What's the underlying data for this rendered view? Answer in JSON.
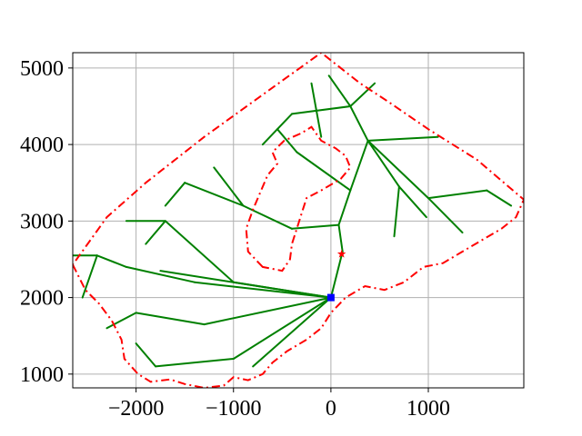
{
  "chart_data": {
    "type": "scatter",
    "title": "",
    "xlabel": "",
    "ylabel": "",
    "xlim": [
      -2650,
      1980
    ],
    "ylim": [
      820,
      5200
    ],
    "grid": true,
    "xticks": [
      -2000,
      -1000,
      0,
      1000
    ],
    "yticks": [
      1000,
      2000,
      3000,
      4000,
      5000
    ],
    "xtick_labels": [
      "−2000",
      "−1000",
      "0",
      "1000"
    ],
    "ytick_labels": [
      "1000",
      "2000",
      "3000",
      "4000",
      "5000"
    ],
    "colors": {
      "branches": "#008000",
      "outer_boundary": "#ff0000",
      "inner_boundary": "#ff0000",
      "origin_marker": "#0000ff",
      "target_marker": "#ff0000"
    },
    "outer_boundary": [
      [
        -2650,
        2430
      ],
      [
        -2520,
        2100
      ],
      [
        -2380,
        1920
      ],
      [
        -2250,
        1700
      ],
      [
        -2150,
        1450
      ],
      [
        -2120,
        1200
      ],
      [
        -1980,
        1000
      ],
      [
        -1850,
        900
      ],
      [
        -1650,
        930
      ],
      [
        -1500,
        870
      ],
      [
        -1300,
        820
      ],
      [
        -1100,
        850
      ],
      [
        -1000,
        960
      ],
      [
        -850,
        920
      ],
      [
        -700,
        1000
      ],
      [
        -600,
        1150
      ],
      [
        -450,
        1300
      ],
      [
        -250,
        1450
      ],
      [
        -100,
        1600
      ],
      [
        0,
        1800
      ],
      [
        150,
        2000
      ],
      [
        350,
        2150
      ],
      [
        550,
        2100
      ],
      [
        750,
        2200
      ],
      [
        950,
        2400
      ],
      [
        1150,
        2450
      ],
      [
        1350,
        2600
      ],
      [
        1550,
        2750
      ],
      [
        1750,
        2900
      ],
      [
        1900,
        3050
      ],
      [
        1980,
        3280
      ],
      [
        1500,
        3800
      ],
      [
        1000,
        4200
      ],
      [
        600,
        4550
      ],
      [
        300,
        4800
      ],
      [
        -100,
        5200
      ],
      [
        -700,
        4650
      ],
      [
        -1300,
        4100
      ],
      [
        -1900,
        3500
      ],
      [
        -2300,
        3050
      ],
      [
        -2650,
        2430
      ]
    ],
    "inner_boundary": [
      [
        -700,
        2400
      ],
      [
        -850,
        2600
      ],
      [
        -870,
        2900
      ],
      [
        -800,
        3150
      ],
      [
        -650,
        3600
      ],
      [
        -550,
        3750
      ],
      [
        -600,
        3900
      ],
      [
        -480,
        4050
      ],
      [
        -300,
        4150
      ],
      [
        -200,
        4230
      ],
      [
        -100,
        4050
      ],
      [
        50,
        3950
      ],
      [
        150,
        3850
      ],
      [
        200,
        3700
      ],
      [
        100,
        3550
      ],
      [
        -100,
        3400
      ],
      [
        -250,
        3300
      ],
      [
        -300,
        3100
      ],
      [
        -350,
        2900
      ],
      [
        -400,
        2700
      ],
      [
        -420,
        2500
      ],
      [
        -500,
        2350
      ],
      [
        -700,
        2400
      ]
    ],
    "origin_marker": {
      "label": "",
      "x": 0,
      "y": 2000
    },
    "target_marker": {
      "label": "",
      "x": 110,
      "y": 2570
    },
    "branches": [
      [
        [
          0,
          2000
        ],
        [
          -1750,
          2350
        ]
      ],
      [
        [
          0,
          2000
        ],
        [
          -1400,
          2200
        ]
      ],
      [
        [
          0,
          2000
        ],
        [
          -1300,
          1650
        ]
      ],
      [
        [
          0,
          2000
        ],
        [
          -1000,
          1200
        ]
      ],
      [
        [
          0,
          2000
        ],
        [
          -800,
          1100
        ]
      ],
      [
        [
          0,
          2000
        ],
        [
          -1000,
          2200
        ]
      ],
      [
        [
          0,
          2000
        ],
        [
          120,
          2600
        ]
      ],
      [
        [
          120,
          2600
        ],
        [
          80,
          2950
        ]
      ],
      [
        [
          80,
          2950
        ],
        [
          200,
          3400
        ]
      ],
      [
        [
          200,
          3400
        ],
        [
          380,
          4050
        ]
      ],
      [
        [
          380,
          4050
        ],
        [
          200,
          4500
        ]
      ],
      [
        [
          200,
          4500
        ],
        [
          -20,
          4900
        ]
      ],
      [
        [
          200,
          4500
        ],
        [
          450,
          4800
        ]
      ],
      [
        [
          380,
          4050
        ],
        [
          1100,
          4100
        ]
      ],
      [
        [
          380,
          4050
        ],
        [
          700,
          3450
        ]
      ],
      [
        [
          380,
          4050
        ],
        [
          1000,
          3300
        ]
      ],
      [
        [
          1000,
          3300
        ],
        [
          1600,
          3400
        ]
      ],
      [
        [
          1600,
          3400
        ],
        [
          1850,
          3200
        ]
      ],
      [
        [
          1000,
          3300
        ],
        [
          1350,
          2850
        ]
      ],
      [
        [
          700,
          3450
        ],
        [
          980,
          3050
        ]
      ],
      [
        [
          700,
          3450
        ],
        [
          650,
          2800
        ]
      ],
      [
        [
          80,
          2950
        ],
        [
          -400,
          2900
        ]
      ],
      [
        [
          -400,
          2900
        ],
        [
          -900,
          3200
        ]
      ],
      [
        [
          -900,
          3200
        ],
        [
          -1500,
          3500
        ]
      ],
      [
        [
          -1500,
          3500
        ],
        [
          -1700,
          3200
        ]
      ],
      [
        [
          -900,
          3200
        ],
        [
          -1200,
          3700
        ]
      ],
      [
        [
          -1400,
          2200
        ],
        [
          -2100,
          2400
        ]
      ],
      [
        [
          -2100,
          2400
        ],
        [
          -2400,
          2550
        ]
      ],
      [
        [
          -2400,
          2550
        ],
        [
          -2700,
          2550
        ]
      ],
      [
        [
          -2400,
          2550
        ],
        [
          -2550,
          2000
        ]
      ],
      [
        [
          -1300,
          1650
        ],
        [
          -2000,
          1800
        ]
      ],
      [
        [
          -2000,
          1800
        ],
        [
          -2300,
          1600
        ]
      ],
      [
        [
          -1000,
          1200
        ],
        [
          -1800,
          1100
        ]
      ],
      [
        [
          -1800,
          1100
        ],
        [
          -2000,
          1400
        ]
      ],
      [
        [
          -1000,
          2200
        ],
        [
          -1700,
          3000
        ]
      ],
      [
        [
          -1700,
          3000
        ],
        [
          -2100,
          3000
        ]
      ],
      [
        [
          -1700,
          3000
        ],
        [
          -1900,
          2700
        ]
      ],
      [
        [
          200,
          3400
        ],
        [
          -350,
          3900
        ]
      ],
      [
        [
          -350,
          3900
        ],
        [
          -550,
          4200
        ]
      ],
      [
        [
          200,
          4500
        ],
        [
          -400,
          4400
        ]
      ],
      [
        [
          -400,
          4400
        ],
        [
          -700,
          4000
        ]
      ],
      [
        [
          -100,
          4100
        ],
        [
          -200,
          4800
        ]
      ]
    ]
  }
}
